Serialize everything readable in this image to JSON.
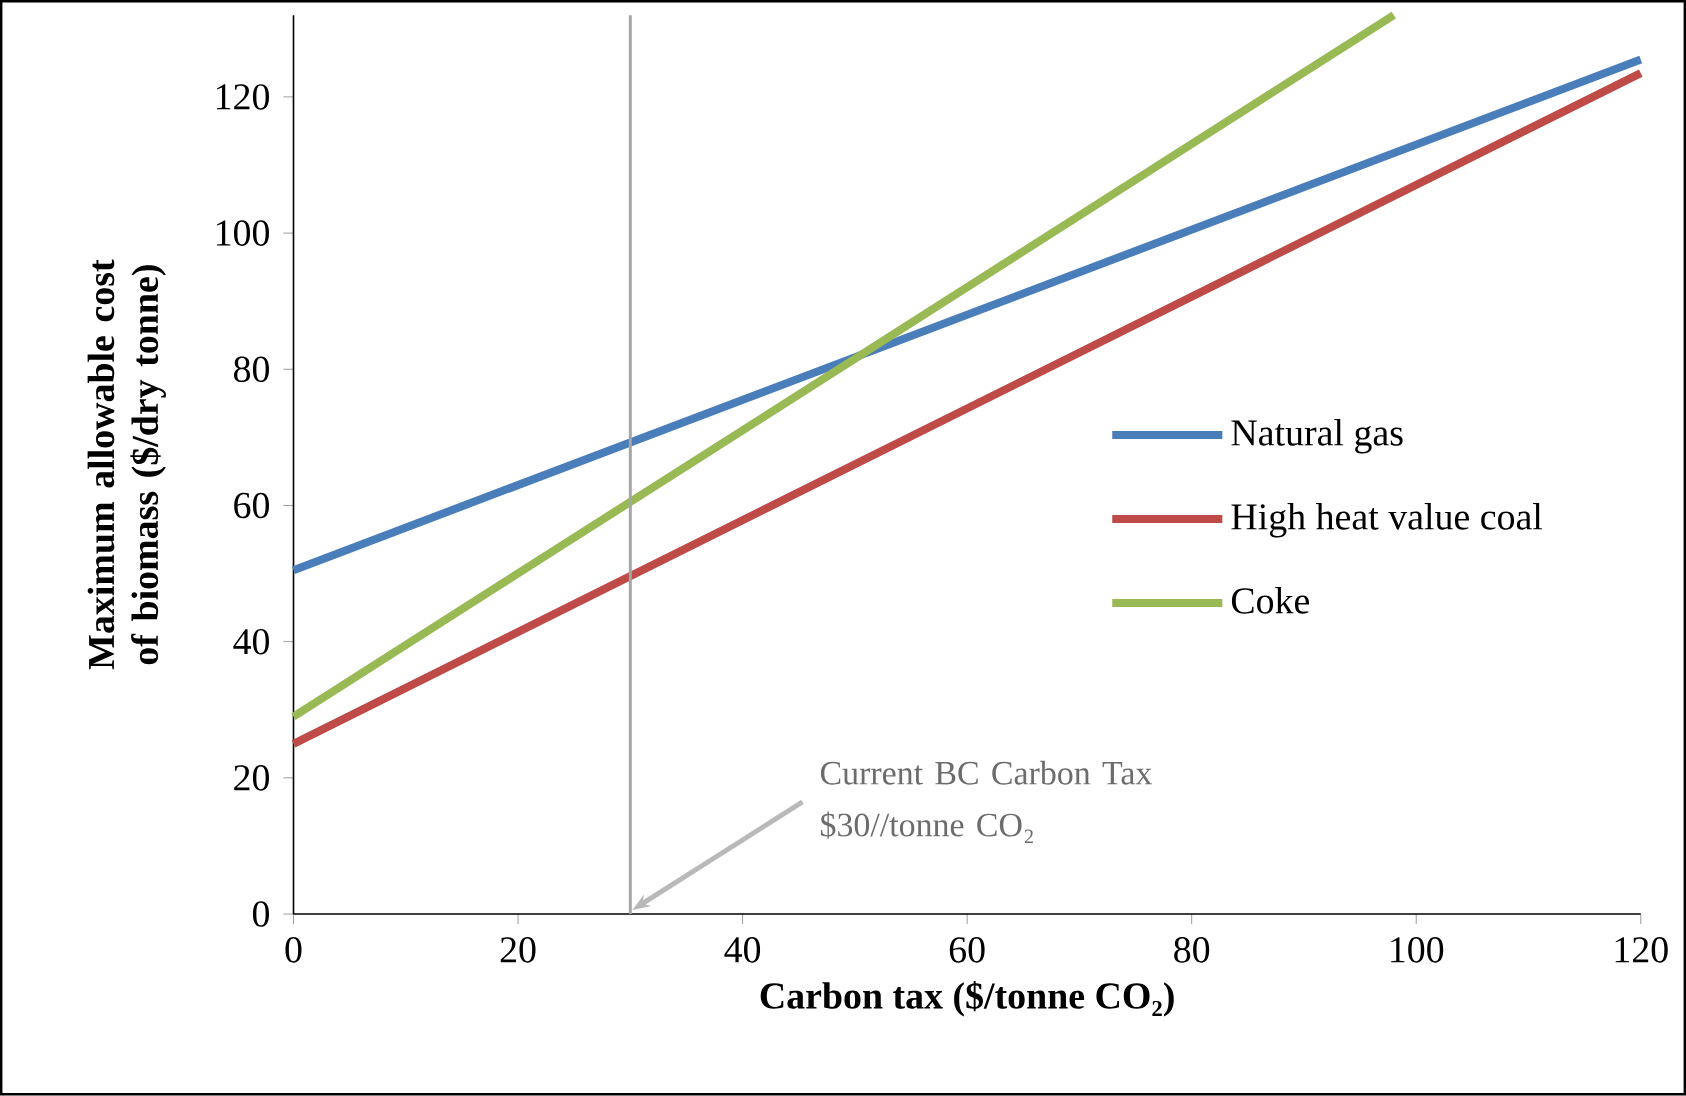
{
  "chart_data": {
    "type": "line",
    "xlabel": "Carbon tax ($/tonne CO₂)",
    "ylabel": "Maximum allowable cost of biomass ($/dry tonne)",
    "series": [
      {
        "name": "Natural gas",
        "color": "#4a7ebb",
        "x": [
          0,
          120
        ],
        "values": [
          50.5,
          125.5
        ]
      },
      {
        "name": "High heat value coal",
        "color": "#be4b48",
        "x": [
          0,
          120
        ],
        "values": [
          25,
          123.5
        ]
      },
      {
        "name": "Coke",
        "color": "#98b954",
        "x": [
          0,
          98
        ],
        "values": [
          29,
          132
        ]
      }
    ],
    "xlim": [
      0,
      120
    ],
    "ylim": [
      0,
      132
    ],
    "xticks": [
      0,
      20,
      40,
      60,
      80,
      100,
      120
    ],
    "yticks": [
      0,
      20,
      40,
      60,
      80,
      100,
      120
    ],
    "ref_lines": [
      {
        "axis": "x",
        "value": 30,
        "color": "#a6a6a6"
      }
    ],
    "annotations": [
      {
        "text": "Current BC Carbon Tax $30//tonne CO₂",
        "x": 30,
        "y": 0
      }
    ],
    "legend": "right",
    "grid": false,
    "marker": "none",
    "line_style": "solid"
  }
}
